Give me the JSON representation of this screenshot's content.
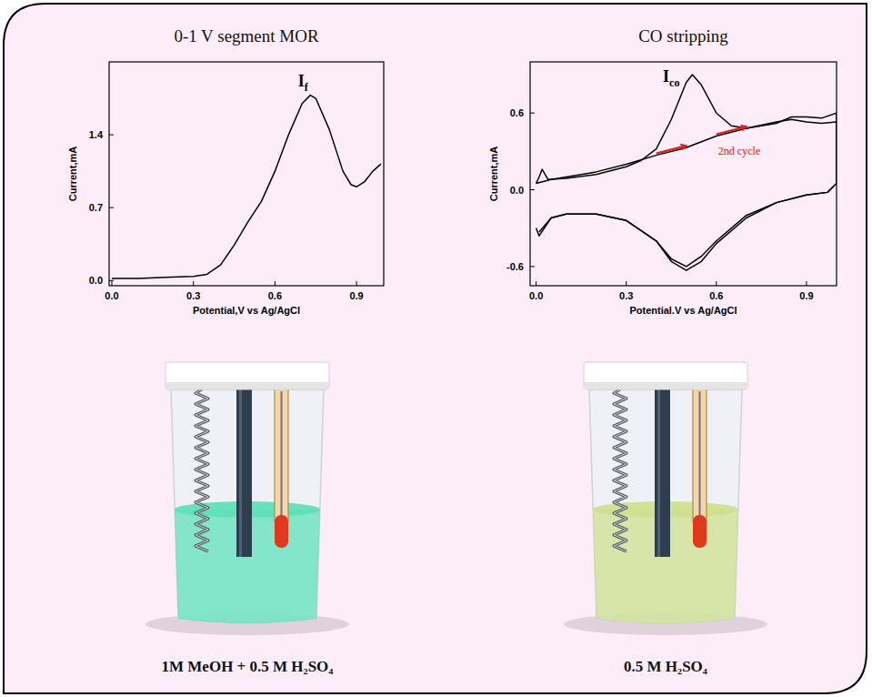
{
  "chart_data": [
    {
      "type": "line",
      "title": "0-1 V segment MOR",
      "x_label": "Potential,V vs Ag/AgCl",
      "y_label": "Current,mA",
      "xlim": [
        -0.01,
        1.0
      ],
      "ylim": [
        -0.05,
        2.1
      ],
      "xticks": [
        {
          "value": 0,
          "label": "0.0"
        },
        0.3,
        0.6,
        0.9
      ],
      "yticks": [
        {
          "value": 0,
          "label": "0.0"
        },
        0.7,
        1.4
      ],
      "grid": false,
      "annotations": [
        {
          "text": "I",
          "subscript": "f"
        }
      ],
      "series": [
        {
          "color": "#000000",
          "x": [
            0,
            0.1,
            0.2,
            0.3,
            0.35,
            0.4,
            0.45,
            0.5,
            0.55,
            0.6,
            0.65,
            0.7,
            0.73,
            0.75,
            0.8,
            0.85,
            0.88,
            0.9,
            0.93,
            0.96,
            0.99
          ],
          "values": [
            0.02,
            0.02,
            0.03,
            0.04,
            0.06,
            0.15,
            0.34,
            0.56,
            0.76,
            1.05,
            1.4,
            1.7,
            1.78,
            1.75,
            1.45,
            1.05,
            0.92,
            0.9,
            0.95,
            1.05,
            1.12
          ]
        }
      ]
    },
    {
      "type": "line",
      "title": "CO stripping",
      "x_label": "Potential.V vs Ag/AgCl",
      "y_label": "Current,mA",
      "xlim": [
        -0.02,
        1.0
      ],
      "ylim": [
        -0.75,
        1.0
      ],
      "xticks": [
        {
          "value": 0,
          "label": "0.0"
        },
        0.3,
        0.6,
        0.9
      ],
      "yticks": [
        -0.6,
        {
          "value": 0,
          "label": "0.0"
        },
        0.6
      ],
      "grid": false,
      "annotations": [
        {
          "text": "I",
          "subscript": "co"
        },
        {
          "text": "2nd cycle",
          "color": "#e0201b"
        }
      ],
      "series": [
        {
          "color": "#000000",
          "x": [
            0,
            0.01,
            0.02,
            0.04,
            0.1,
            0.2,
            0.3,
            0.35,
            0.4,
            0.45,
            0.5,
            0.52,
            0.55,
            0.6,
            0.65,
            0.7,
            0.8,
            0.85,
            0.9,
            0.95,
            1.0,
            1.0,
            0.97,
            0.9,
            0.8,
            0.7,
            0.6,
            0.55,
            0.5,
            0.45,
            0.4,
            0.3,
            0.2,
            0.1,
            0.05,
            0.01,
            0.0
          ],
          "values": [
            0.05,
            0.1,
            0.16,
            0.08,
            0.09,
            0.12,
            0.18,
            0.23,
            0.32,
            0.55,
            0.84,
            0.9,
            0.82,
            0.6,
            0.5,
            0.48,
            0.52,
            0.57,
            0.57,
            0.56,
            0.6,
            0.05,
            -0.02,
            -0.04,
            -0.1,
            -0.22,
            -0.42,
            -0.56,
            -0.63,
            -0.56,
            -0.4,
            -0.24,
            -0.19,
            -0.19,
            -0.22,
            -0.36,
            -0.3
          ]
        },
        {
          "color": "#000000",
          "x": [
            0,
            0.05,
            0.1,
            0.2,
            0.3,
            0.4,
            0.5,
            0.6,
            0.7,
            0.8,
            0.85,
            0.9,
            0.95,
            1.0,
            1.0,
            0.97,
            0.9,
            0.8,
            0.7,
            0.6,
            0.55,
            0.5,
            0.45,
            0.4,
            0.3,
            0.2,
            0.1,
            0.05,
            0.01
          ],
          "values": [
            0.05,
            0.08,
            0.1,
            0.14,
            0.2,
            0.27,
            0.33,
            0.42,
            0.48,
            0.53,
            0.55,
            0.53,
            0.52,
            0.53,
            0.05,
            -0.02,
            -0.04,
            -0.1,
            -0.2,
            -0.4,
            -0.52,
            -0.6,
            -0.54,
            -0.4,
            -0.24,
            -0.19,
            -0.19,
            -0.22,
            -0.33
          ]
        }
      ]
    }
  ],
  "beakers": [
    {
      "label": "1M MeOH + 0.5 M H₂SO₄",
      "color": "#5fe0b9"
    },
    {
      "label": "0.5 M H₂SO₄",
      "color": "#cfe08f"
    }
  ]
}
